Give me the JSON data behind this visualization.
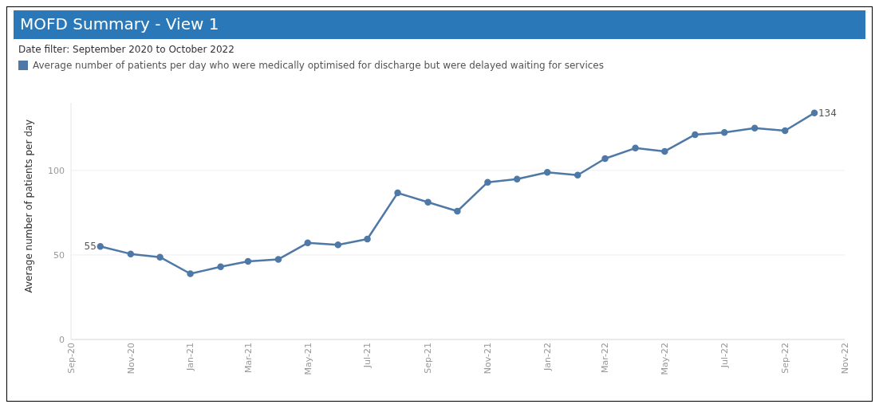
{
  "chart_data": {
    "type": "line",
    "title": "MOFD Summary - View 1",
    "subtitle": "Date filter:  September 2020 to October 2022",
    "ylabel": "Average number of patients per day",
    "x": [
      "2020-10",
      "2020-11",
      "2020-12",
      "2021-01",
      "2021-02",
      "2021-03",
      "2021-04",
      "2021-05",
      "2021-06",
      "2021-07",
      "2021-08",
      "2021-09",
      "2021-10",
      "2021-11",
      "2021-12",
      "2022-01",
      "2022-02",
      "2022-03",
      "2022-04",
      "2022-05",
      "2022-06",
      "2022-07",
      "2022-08",
      "2022-09",
      "2022-10"
    ],
    "series": [
      {
        "name": "Average number of patients per day who were medically optimised for discharge but were delayed waiting for services",
        "color": "#4e79a7",
        "values": [
          55,
          50.6,
          48.7,
          38.9,
          43,
          46.2,
          47.4,
          57.1,
          56,
          59.4,
          86.7,
          81.2,
          75.9,
          93,
          94.9,
          98.9,
          97.2,
          107,
          113.2,
          111.3,
          121.2,
          122.4,
          125,
          123.5,
          134
        ],
        "value_labels": [
          "55",
          null,
          null,
          null,
          null,
          null,
          null,
          null,
          null,
          null,
          null,
          null,
          null,
          null,
          null,
          null,
          null,
          null,
          null,
          null,
          null,
          null,
          null,
          null,
          "134"
        ]
      }
    ],
    "xlim": [
      "2020-09",
      "2022-11"
    ],
    "xticks": [
      {
        "value": "2020-09",
        "label": "Sep-20"
      },
      {
        "value": "2020-11",
        "label": "Nov-20"
      },
      {
        "value": "2021-01",
        "label": "Jan-21"
      },
      {
        "value": "2021-03",
        "label": "Mar-21"
      },
      {
        "value": "2021-05",
        "label": "May-21"
      },
      {
        "value": "2021-07",
        "label": "Jul-21"
      },
      {
        "value": "2021-09",
        "label": "Sep-21"
      },
      {
        "value": "2021-11",
        "label": "Nov-21"
      },
      {
        "value": "2022-01",
        "label": "Jan-22"
      },
      {
        "value": "2022-03",
        "label": "Mar-22"
      },
      {
        "value": "2022-05",
        "label": "May-22"
      },
      {
        "value": "2022-07",
        "label": "Jul-22"
      },
      {
        "value": "2022-09",
        "label": "Sep-22"
      },
      {
        "value": "2022-11",
        "label": "Nov-22"
      }
    ],
    "ylim": [
      0,
      140
    ],
    "yticks": [
      0,
      50,
      100
    ],
    "grid": "y",
    "legend": "top left",
    "marker": "circle",
    "line_style": "solid"
  }
}
